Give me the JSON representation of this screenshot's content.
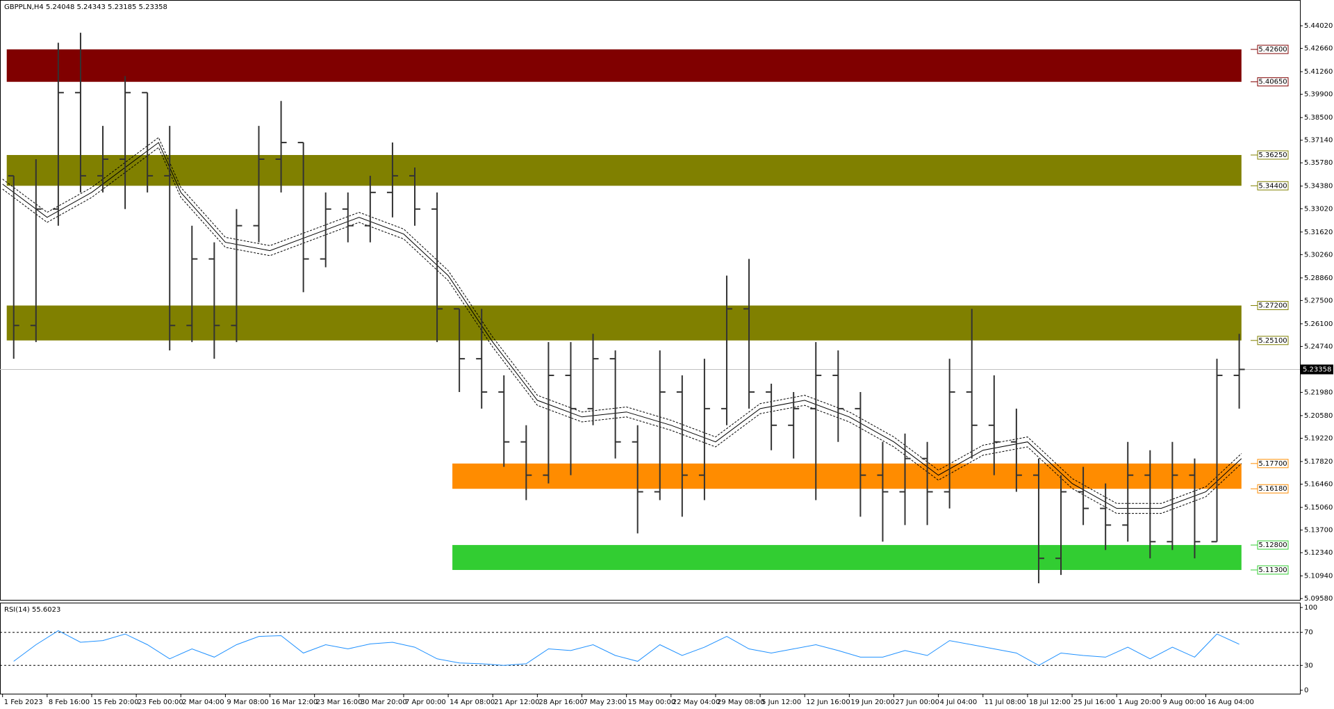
{
  "header": "GBPPLN,H4  5.24048 5.24343 5.23185 5.23358",
  "chart_data": {
    "type": "ohlc",
    "categories": [
      "1 Feb 2023",
      "8 Feb 16:00",
      "15 Feb 20:00",
      "23 Feb 00:00",
      "2 Mar 04:00",
      "9 Mar 08:00",
      "16 Mar 12:00",
      "23 Mar 16:00",
      "30 Mar 20:00",
      "7 Apr 00:00",
      "14 Apr 08:00",
      "21 Apr 12:00",
      "28 Apr 16:00",
      "7 May 23:00",
      "15 May 00:00",
      "22 May 04:00",
      "29 May 08:00",
      "5 Jun 12:00",
      "12 Jun 16:00",
      "19 Jun 20:00",
      "27 Jun 00:00",
      "4 Jul 04:00",
      "11 Jul 08:00",
      "18 Jul 12:00",
      "25 Jul 16:00",
      "1 Aug 20:00",
      "9 Aug 00:00",
      "16 Aug 04:00"
    ],
    "bars_per_category": 2,
    "open": [
      5.35,
      5.26,
      5.33,
      5.4,
      5.35,
      5.36,
      5.4,
      5.35,
      5.26,
      5.3,
      5.26,
      5.32,
      5.36,
      5.37,
      5.3,
      5.33,
      5.32,
      5.34,
      5.35,
      5.33,
      5.27,
      5.24,
      5.22,
      5.19,
      5.17,
      5.23,
      5.21,
      5.24,
      5.19,
      5.16,
      5.22,
      5.17,
      5.21,
      5.27,
      5.22,
      5.2,
      5.21,
      5.23,
      5.21,
      5.17,
      5.16,
      5.18,
      5.16,
      5.22,
      5.2,
      5.19,
      5.17,
      5.12,
      5.16,
      5.15,
      5.14,
      5.17,
      5.13,
      5.17,
      5.13,
      5.23
    ],
    "high": [
      5.35,
      5.36,
      5.43,
      5.436,
      5.38,
      5.41,
      5.4,
      5.38,
      5.32,
      5.31,
      5.33,
      5.38,
      5.395,
      5.37,
      5.34,
      5.34,
      5.35,
      5.37,
      5.355,
      5.34,
      5.27,
      5.27,
      5.23,
      5.2,
      5.25,
      5.25,
      5.255,
      5.245,
      5.2,
      5.245,
      5.23,
      5.24,
      5.29,
      5.3,
      5.225,
      5.22,
      5.25,
      5.245,
      5.22,
      5.19,
      5.195,
      5.19,
      5.24,
      5.27,
      5.23,
      5.21,
      5.18,
      5.17,
      5.175,
      5.165,
      5.19,
      5.185,
      5.19,
      5.18,
      5.24,
      5.255
    ],
    "low": [
      5.24,
      5.25,
      5.32,
      5.34,
      5.34,
      5.33,
      5.34,
      5.245,
      5.25,
      5.24,
      5.25,
      5.31,
      5.34,
      5.28,
      5.295,
      5.31,
      5.31,
      5.325,
      5.32,
      5.25,
      5.22,
      5.21,
      5.175,
      5.155,
      5.165,
      5.17,
      5.2,
      5.18,
      5.135,
      5.155,
      5.145,
      5.155,
      5.2,
      5.21,
      5.185,
      5.18,
      5.155,
      5.19,
      5.145,
      5.13,
      5.14,
      5.14,
      5.15,
      5.18,
      5.17,
      5.16,
      5.105,
      5.11,
      5.14,
      5.125,
      5.13,
      5.12,
      5.125,
      5.12,
      5.13,
      5.21
    ],
    "close": [
      5.26,
      5.33,
      5.4,
      5.35,
      5.36,
      5.4,
      5.35,
      5.26,
      5.3,
      5.26,
      5.32,
      5.36,
      5.37,
      5.3,
      5.33,
      5.32,
      5.34,
      5.35,
      5.33,
      5.27,
      5.24,
      5.22,
      5.19,
      5.17,
      5.23,
      5.21,
      5.24,
      5.19,
      5.16,
      5.22,
      5.17,
      5.21,
      5.27,
      5.22,
      5.2,
      5.21,
      5.23,
      5.21,
      5.17,
      5.16,
      5.18,
      5.16,
      5.22,
      5.2,
      5.19,
      5.17,
      5.12,
      5.16,
      5.15,
      5.14,
      5.17,
      5.13,
      5.17,
      5.13,
      5.23,
      5.23358
    ],
    "bar_color": "#333333",
    "ma": {
      "x": [
        0,
        1,
        2,
        3,
        3.5,
        4,
        5,
        6,
        7,
        8,
        9,
        10,
        11,
        12,
        13,
        14,
        15,
        16,
        17,
        18,
        19,
        20,
        21,
        22,
        23,
        24,
        25,
        26,
        27,
        27.8
      ],
      "values": [
        5.345,
        5.325,
        5.34,
        5.36,
        5.37,
        5.34,
        5.31,
        5.305,
        5.315,
        5.325,
        5.315,
        5.29,
        5.25,
        5.215,
        5.205,
        5.208,
        5.2,
        5.19,
        5.21,
        5.215,
        5.205,
        5.19,
        5.17,
        5.185,
        5.19,
        5.165,
        5.15,
        5.15,
        5.16,
        5.18
      ],
      "envelope": 0.003,
      "color": "#000000"
    },
    "zones": [
      {
        "top": 5.426,
        "bottom": 5.4065,
        "top_label": "5.42600",
        "bottom_label": "5.40650",
        "color": "#800000",
        "start": 0
      },
      {
        "top": 5.3625,
        "bottom": 5.344,
        "top_label": "5.36250",
        "bottom_label": "5.34400",
        "color": "#808000",
        "start": 0
      },
      {
        "top": 5.272,
        "bottom": 5.251,
        "top_label": "5.27200",
        "bottom_label": "5.25100",
        "color": "#808000",
        "start": 0
      },
      {
        "top": 5.177,
        "bottom": 5.1618,
        "top_label": "5.17700",
        "bottom_label": "5.16180",
        "color": "#ff8c00",
        "start": 10
      },
      {
        "top": 5.128,
        "bottom": 5.113,
        "top_label": "5.12800",
        "bottom_label": "5.11300",
        "color": "#32cd32",
        "start": 10
      }
    ],
    "current_price": {
      "value": 5.23358,
      "label": "5.23358"
    },
    "ylim": [
      5.0946,
      5.4557
    ],
    "yticks": [
      {
        "value": 5.4402,
        "label": "5.44020"
      },
      {
        "value": 5.4266,
        "label": "5.42660"
      },
      {
        "value": 5.4126,
        "label": "5.41260"
      },
      {
        "value": 5.399,
        "label": "5.39900"
      },
      {
        "value": 5.385,
        "label": "5.38500"
      },
      {
        "value": 5.3714,
        "label": "5.37140"
      },
      {
        "value": 5.3578,
        "label": "5.35780"
      },
      {
        "value": 5.3438,
        "label": "5.34380"
      },
      {
        "value": 5.3302,
        "label": "5.33020"
      },
      {
        "value": 5.3162,
        "label": "5.31620"
      },
      {
        "value": 5.3026,
        "label": "5.30260"
      },
      {
        "value": 5.2886,
        "label": "5.28860"
      },
      {
        "value": 5.275,
        "label": "5.27500"
      },
      {
        "value": 5.261,
        "label": "5.26100"
      },
      {
        "value": 5.2474,
        "label": "5.24740"
      },
      {
        "value": 5.2198,
        "label": "5.21980"
      },
      {
        "value": 5.2058,
        "label": "5.20580"
      },
      {
        "value": 5.1922,
        "label": "5.19220"
      },
      {
        "value": 5.1782,
        "label": "5.17820"
      },
      {
        "value": 5.1646,
        "label": "5.16460"
      },
      {
        "value": 5.1506,
        "label": "5.15060"
      },
      {
        "value": 5.137,
        "label": "5.13700"
      },
      {
        "value": 5.1234,
        "label": "5.12340"
      },
      {
        "value": 5.1094,
        "label": "5.10940"
      },
      {
        "value": 5.0958,
        "label": "5.09580"
      }
    ],
    "rsi": {
      "title": "RSI(14) 55.6023",
      "color": "#1e90ff",
      "values": [
        35,
        55,
        72,
        58,
        60,
        68,
        55,
        38,
        50,
        40,
        55,
        65,
        66,
        45,
        55,
        50,
        56,
        58,
        52,
        38,
        33,
        32,
        30,
        32,
        50,
        48,
        55,
        42,
        35,
        55,
        42,
        52,
        65,
        50,
        45,
        50,
        55,
        48,
        40,
        40,
        48,
        42,
        60,
        55,
        50,
        45,
        30,
        45,
        42,
        40,
        52,
        38,
        52,
        40,
        68,
        55.6023
      ],
      "ylim": [
        0,
        100
      ],
      "yticks": [
        100,
        70,
        30,
        0
      ],
      "levels": [
        70,
        30
      ]
    }
  }
}
